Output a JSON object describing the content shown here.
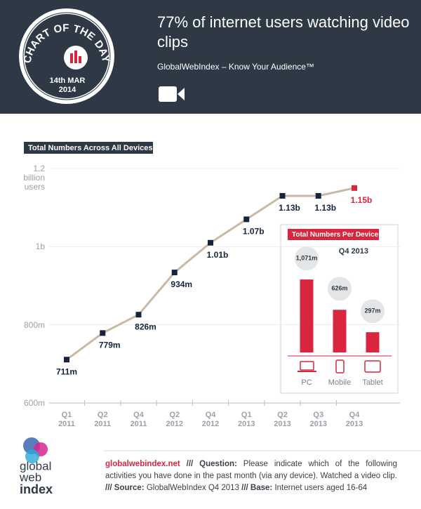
{
  "header": {
    "title": "77% of internet users watching video clips",
    "subtitle": "GlobalWebIndex – Know Your Audience™",
    "badge": {
      "title": "CHART OF THE DAY",
      "date": "14th MAR",
      "year": "2014"
    }
  },
  "chart_data": [
    {
      "type": "line",
      "title": "Total Numbers Across All Devices",
      "categories": [
        "Q1 2011",
        "Q2 2011",
        "Q4 2011",
        "Q2 2012",
        "Q4 2012",
        "Q1 2013",
        "Q2 2013",
        "Q3 2013",
        "Q4 2013"
      ],
      "series": [
        {
          "name": "Total",
          "color": "#c9b9a2",
          "marker_color": "#15243d",
          "highlight_color": "#d7263d",
          "values": [
            711,
            779,
            826,
            934,
            1010,
            1070,
            1130,
            1130,
            1150
          ],
          "value_labels": [
            "711m",
            "779m",
            "826m",
            "934m",
            "1.01b",
            "1.07b",
            "1.13b",
            "1.13b",
            "1.15b"
          ]
        }
      ],
      "ylim": [
        600,
        1200
      ],
      "yticks": [
        {
          "value": 600,
          "label": "600m"
        },
        {
          "value": 800,
          "label": "800m"
        },
        {
          "value": 1000,
          "label": "1b"
        },
        {
          "value": 1200,
          "label": "1.2 billion users"
        }
      ],
      "grid": true
    },
    {
      "type": "bar",
      "title": "Total Numbers Per Device",
      "subtitle": "Q4 2013",
      "categories": [
        "PC",
        "Mobile",
        "Tablet"
      ],
      "values": [
        1071,
        626,
        297
      ],
      "value_labels": [
        "1,071m",
        "626m",
        "297m"
      ],
      "color": "#d7263d"
    }
  ],
  "footer": {
    "logo": [
      "global",
      "web",
      "index"
    ],
    "site": "globalwebindex.net",
    "question_label": "/// Question:",
    "question": "Please indicate which of the following activities you have done in the past month (via any device). Watched a video clip.",
    "source_label": "/// Source:",
    "source": "GlobalWebIndex Q4 2013",
    "base_label": "/// Base:",
    "base": "Internet users aged 16-64"
  }
}
